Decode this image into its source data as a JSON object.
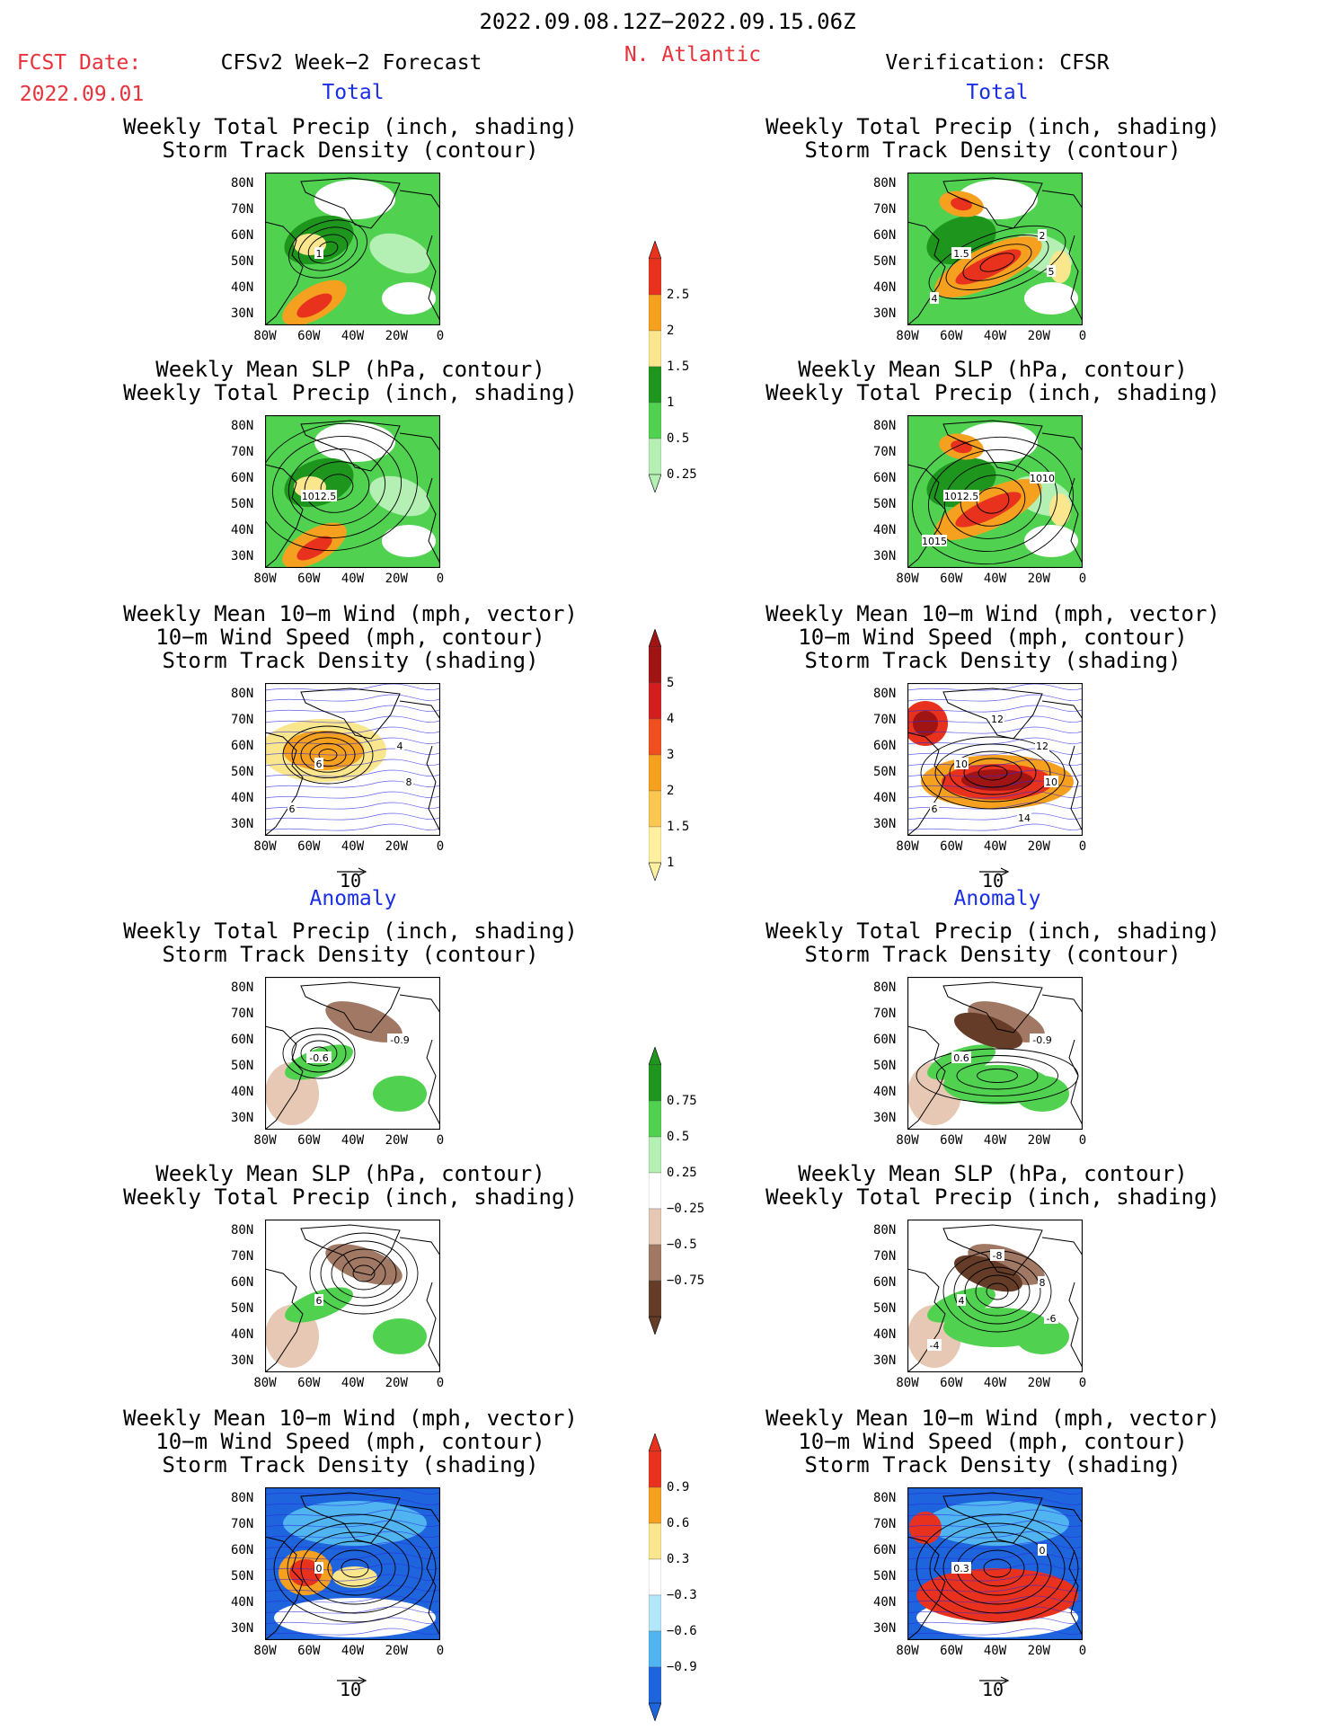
{
  "header": {
    "period": "2022.09.08.12Z−2022.09.15.06Z",
    "fcst_label": "FCST Date:",
    "fcst_date": "2022.09.01",
    "left_title": "CFSv2 Week−2 Forecast",
    "region": "N. Atlantic",
    "right_title": "Verification: CFSR"
  },
  "sections": {
    "total": "Total",
    "anomaly": "Anomaly"
  },
  "panel_titles": {
    "precip_storm": [
      "Weekly Total Precip (inch, shading)",
      "Storm Track Density (contour)"
    ],
    "slp_precip": [
      "Weekly Mean SLP (hPa, contour)",
      "Weekly Total Precip (inch, shading)"
    ],
    "wind_storm": [
      "Weekly Mean 10−m Wind (mph, vector)",
      "10−m Wind Speed (mph, contour)",
      "Storm Track Density (shading)"
    ]
  },
  "axes": {
    "lat_ticks": [
      "80N",
      "70N",
      "60N",
      "50N",
      "40N",
      "30N"
    ],
    "lon_ticks": [
      "80W",
      "60W",
      "40W",
      "20W",
      "0"
    ]
  },
  "vector_reference": "10",
  "colorbars": {
    "precip_total": {
      "labels": [
        "2.5",
        "2",
        "1.5",
        "1",
        "0.5",
        "0.25"
      ],
      "colors": [
        "#e8321e",
        "#f5a01e",
        "#fae68c",
        "#1e961e",
        "#50d250",
        "#b4f0b4"
      ]
    },
    "storm_total": {
      "labels": [
        "5",
        "4",
        "3",
        "2",
        "1.5",
        "1"
      ],
      "colors": [
        "#a01414",
        "#d21e1e",
        "#f0501e",
        "#f5a01e",
        "#fac850",
        "#fff0a0"
      ]
    },
    "precip_anom": {
      "labels": [
        "0.75",
        "0.5",
        "0.25",
        "−0.25",
        "−0.5",
        "−0.75"
      ],
      "colors": [
        "#1e961e",
        "#50d250",
        "#b4f0b4",
        "#ffffff",
        "#e6c8b4",
        "#a07864",
        "#643c28"
      ]
    },
    "storm_anom": {
      "labels": [
        "0.9",
        "0.6",
        "0.3",
        "−0.3",
        "−0.6",
        "−0.9"
      ],
      "colors": [
        "#e8321e",
        "#f5a01e",
        "#fae68c",
        "#ffffff",
        "#b4e6fa",
        "#50b4f0",
        "#1e64dc"
      ]
    }
  },
  "contour_labels": {
    "p1L": [
      "1"
    ],
    "p1R": [
      "1.5",
      "2",
      "4",
      "5"
    ],
    "p2L": [
      "1012.5"
    ],
    "p2R": [
      "1012.5",
      "1010",
      "1015"
    ],
    "p3L": [
      "6",
      "4",
      "6",
      "8"
    ],
    "p3R": [
      "10",
      "12",
      "6",
      "10",
      "12",
      "14"
    ],
    "p4L": [
      "-0.6",
      "-0.9"
    ],
    "p4R": [
      "0.6",
      "-0.9"
    ],
    "p5L": [
      "6"
    ],
    "p5R": [
      "4",
      "8",
      "-4",
      "-6",
      "-8"
    ],
    "p6L": [
      "0"
    ],
    "p6R": [
      "0.3",
      "0"
    ]
  }
}
